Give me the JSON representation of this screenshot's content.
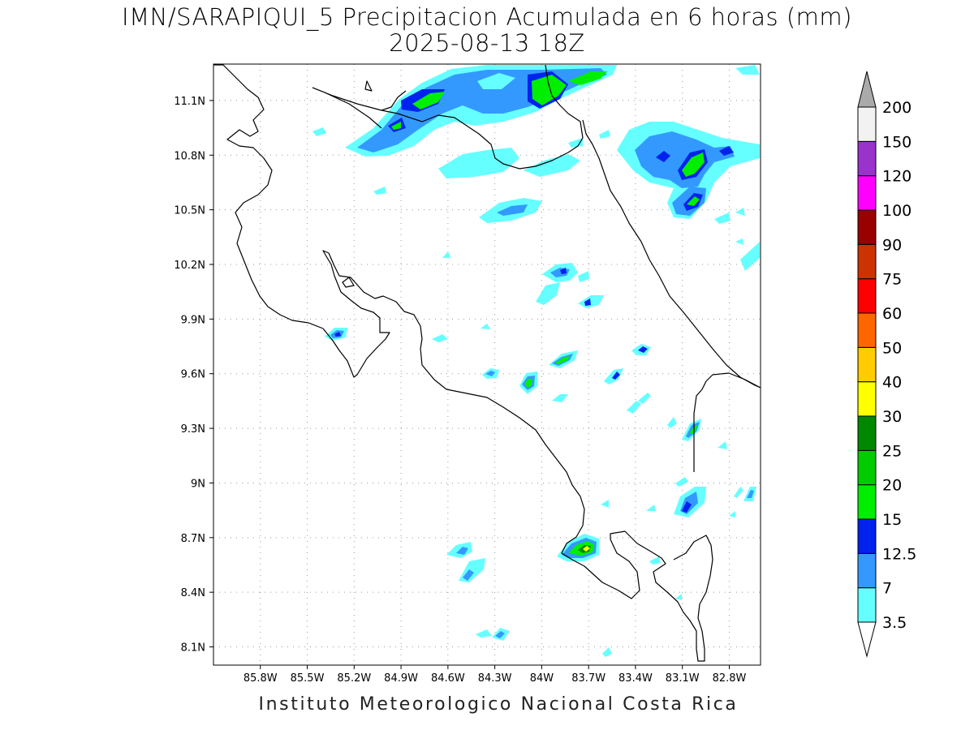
{
  "title": {
    "line1": "IMN/SARAPIQUI_5 Precipitacion Acumulada en 6 horas (mm)",
    "line2": "2025-08-13 18Z"
  },
  "footer": "Instituto Meteorologico Nacional Costa Rica",
  "map": {
    "lon_range": [
      -86.1,
      -82.6
    ],
    "lat_range": [
      8.0,
      11.3
    ],
    "grid": true,
    "lon_ticks": [
      {
        "value": -85.8,
        "label": "85.8W"
      },
      {
        "value": -85.5,
        "label": "85.5W"
      },
      {
        "value": -85.2,
        "label": "85.2W"
      },
      {
        "value": -84.9,
        "label": "84.9W"
      },
      {
        "value": -84.6,
        "label": "84.6W"
      },
      {
        "value": -84.3,
        "label": "84.3W"
      },
      {
        "value": -84.0,
        "label": "84W"
      },
      {
        "value": -83.7,
        "label": "83.7W"
      },
      {
        "value": -83.4,
        "label": "83.4W"
      },
      {
        "value": -83.1,
        "label": "83.1W"
      },
      {
        "value": -82.8,
        "label": "82.8W"
      }
    ],
    "lat_ticks": [
      {
        "value": 11.1,
        "label": "11.1N"
      },
      {
        "value": 10.8,
        "label": "10.8N"
      },
      {
        "value": 10.5,
        "label": "10.5N"
      },
      {
        "value": 10.2,
        "label": "10.2N"
      },
      {
        "value": 9.9,
        "label": "9.9N"
      },
      {
        "value": 9.6,
        "label": "9.6N"
      },
      {
        "value": 9.3,
        "label": "9.3N"
      },
      {
        "value": 9.0,
        "label": "9N"
      },
      {
        "value": 8.7,
        "label": "8.7N"
      },
      {
        "value": 8.4,
        "label": "8.4N"
      },
      {
        "value": 8.1,
        "label": "8.1N"
      }
    ]
  },
  "colorbar": {
    "levels": [
      "3.5",
      "7",
      "12.5",
      "15",
      "20",
      "25",
      "30",
      "40",
      "50",
      "60",
      "75",
      "90",
      "100",
      "120",
      "150",
      "200"
    ],
    "colors": [
      "#66ffff",
      "#3399ff",
      "#0022ee",
      "#00ee00",
      "#00cc00",
      "#008800",
      "#ffff00",
      "#ffcc00",
      "#ff6600",
      "#ff0000",
      "#cc3300",
      "#990000",
      "#ff00ff",
      "#9933cc",
      "#f2f2f2",
      "#aaaaaa"
    ]
  }
}
